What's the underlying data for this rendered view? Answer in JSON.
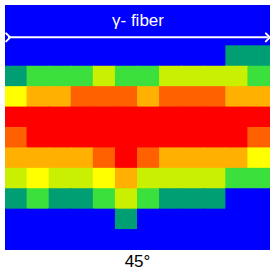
{
  "chart_data": {
    "type": "heatmap",
    "annotation": "γ- fiber",
    "xlabel": "45°",
    "colors": [
      "#0000ff",
      "#009e73",
      "#3ce03c",
      "#c8f000",
      "#ffff00",
      "#ffb000",
      "#ff6000",
      "#ff0000"
    ],
    "cells": [
      [
        0,
        0,
        0,
        0,
        0,
        0,
        0,
        0,
        0,
        0,
        0,
        0
      ],
      [
        0,
        0,
        0,
        0,
        0,
        0,
        0,
        0,
        0,
        0,
        0,
        0
      ],
      [
        0,
        0,
        0,
        0,
        0,
        0,
        0,
        0,
        0,
        0,
        1,
        1
      ],
      [
        1,
        2,
        2,
        2,
        3,
        2,
        2,
        3,
        3,
        3,
        3,
        2
      ],
      [
        4,
        5,
        5,
        6,
        6,
        6,
        5,
        6,
        6,
        6,
        5,
        5
      ],
      [
        7,
        7,
        7,
        7,
        7,
        7,
        7,
        7,
        7,
        7,
        7,
        7
      ],
      [
        6,
        7,
        7,
        7,
        7,
        7,
        7,
        7,
        7,
        7,
        7,
        6
      ],
      [
        5,
        5,
        5,
        5,
        6,
        7,
        6,
        5,
        5,
        5,
        5,
        4
      ],
      [
        3,
        4,
        3,
        3,
        4,
        5,
        3,
        3,
        3,
        3,
        2,
        2
      ],
      [
        1,
        2,
        1,
        1,
        2,
        3,
        2,
        1,
        1,
        1,
        0,
        0
      ],
      [
        0,
        0,
        0,
        0,
        0,
        1,
        0,
        0,
        0,
        0,
        0,
        0
      ],
      [
        0,
        0,
        0,
        0,
        0,
        0,
        0,
        0,
        0,
        0,
        0,
        0
      ]
    ]
  }
}
